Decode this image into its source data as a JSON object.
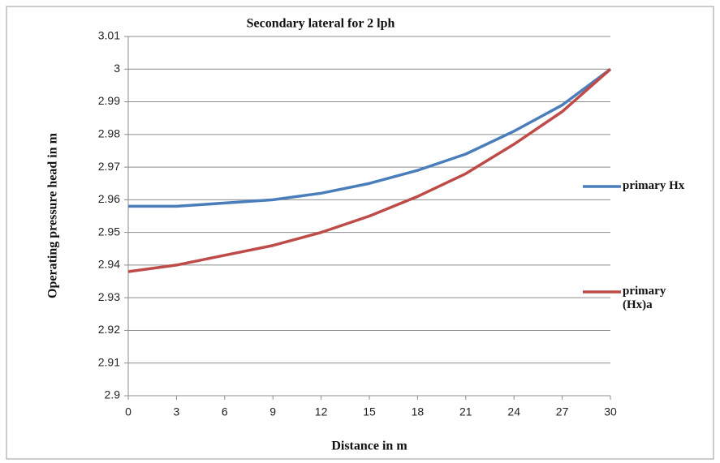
{
  "chart_data": {
    "type": "line",
    "title": "Secondary lateral for 2 lph",
    "x_label": "Distance  in m",
    "y_label": "Operating pressure head  in m",
    "x": [
      0,
      3,
      6,
      9,
      12,
      15,
      18,
      21,
      24,
      27,
      30
    ],
    "xlim": [
      0,
      30
    ],
    "xticks": [
      0,
      3,
      6,
      9,
      12,
      15,
      18,
      21,
      24,
      27,
      30
    ],
    "ylim": [
      2.9,
      3.01
    ],
    "yticks": [
      2.9,
      2.91,
      2.92,
      2.93,
      2.94,
      2.95,
      2.96,
      2.97,
      2.98,
      2.99,
      3,
      3.01
    ],
    "grid": true,
    "legend": "right",
    "series": [
      {
        "name": "primary Hx",
        "color": "#4a7ebb",
        "values": [
          2.958,
          2.958,
          2.959,
          2.96,
          2.962,
          2.965,
          2.969,
          2.974,
          2.981,
          2.989,
          3.0
        ]
      },
      {
        "name": "primary (Hx)a",
        "color": "#be4b48",
        "values": [
          2.938,
          2.94,
          2.943,
          2.946,
          2.95,
          2.955,
          2.961,
          2.968,
          2.977,
          2.987,
          3.0
        ]
      }
    ]
  }
}
